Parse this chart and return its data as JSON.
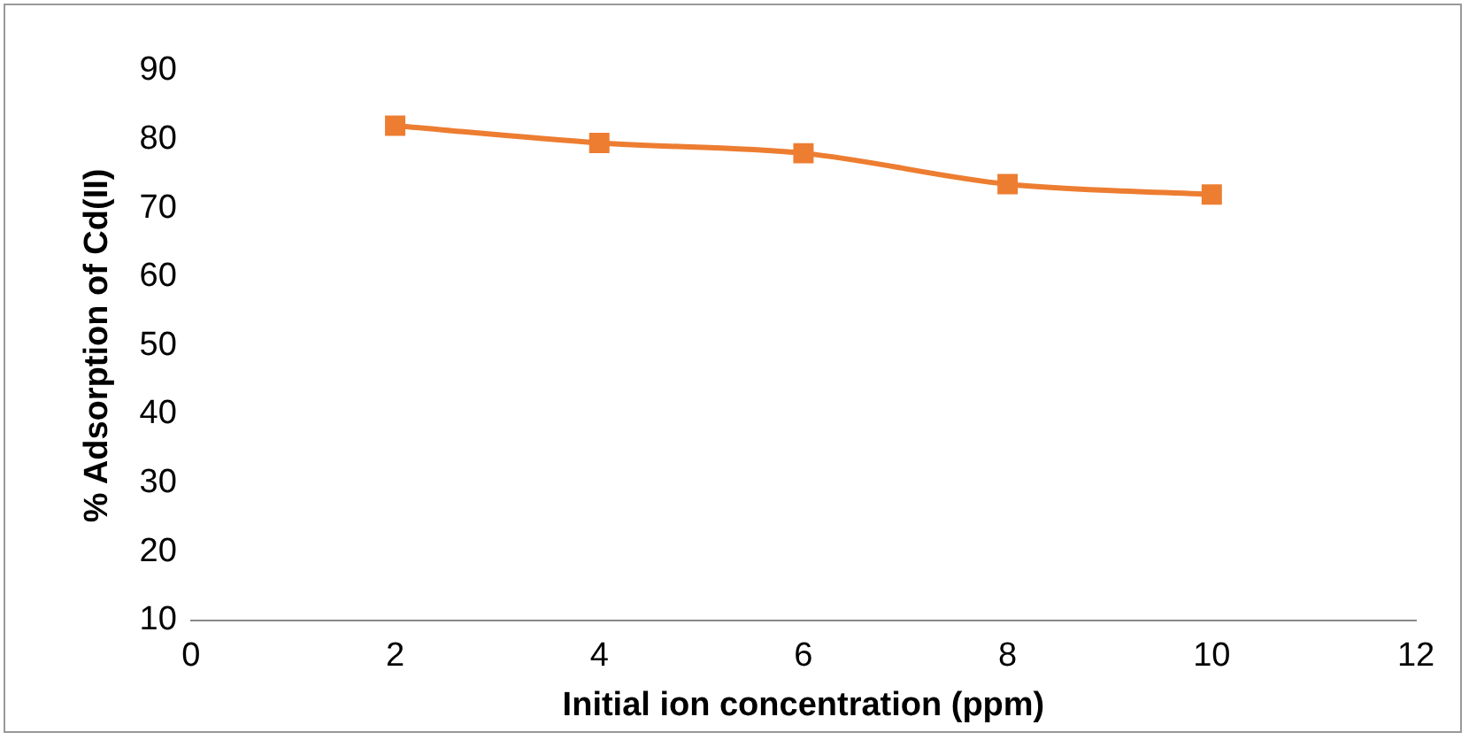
{
  "chart_data": {
    "type": "line",
    "xlabel": "Initial ion concentration (ppm)",
    "ylabel": "% Adsorption of Cd(II)",
    "x": [
      2,
      4,
      6,
      8,
      10
    ],
    "series": [
      {
        "color": "#ed7d31",
        "values": [
          82,
          79.5,
          78,
          73.5,
          72
        ]
      }
    ],
    "xlim": [
      0,
      12
    ],
    "xticks": [
      0,
      2,
      4,
      6,
      8,
      10,
      12
    ],
    "ylim": [
      10,
      90
    ],
    "yticks": [
      10,
      20,
      30,
      40,
      50,
      60,
      70,
      80,
      90
    ],
    "grid": false,
    "legend": false,
    "marker": "square",
    "line_style": "solid"
  }
}
